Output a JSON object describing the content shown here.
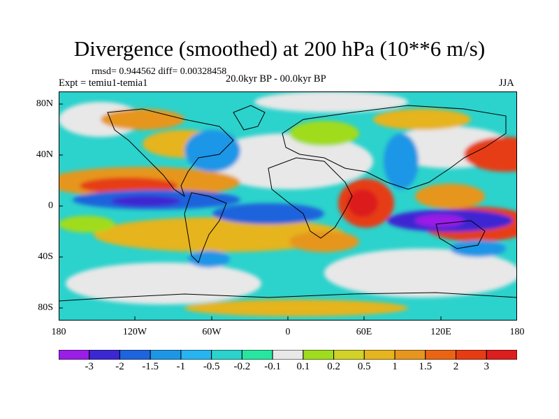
{
  "title": "Divergence (smoothed) at 200 hPa (10**6 m/s)",
  "stats": "rmsd= 0.944562 diff= 0.00328458",
  "experiment": "Expt = temiu1-temia1",
  "period": "20.0kyr BP - 00.0kyr BP",
  "season": "JJA",
  "lat_labels": [
    "80N",
    "40N",
    "0",
    "40S",
    "80S"
  ],
  "lon_labels": [
    "180",
    "120W",
    "60W",
    "0",
    "60E",
    "120E",
    "180"
  ],
  "colorbar": {
    "labels": [
      "-3",
      "-2",
      "-1.5",
      "-1",
      "-0.5",
      "-0.2",
      "-0.1",
      "0.1",
      "0.2",
      "0.5",
      "1",
      "1.5",
      "2",
      "3"
    ],
    "colors": [
      "#9a1ee6",
      "#3c28d2",
      "#1e64dc",
      "#1e96e6",
      "#28b4f0",
      "#2cd2cc",
      "#28e6a0",
      "#e8e8e8",
      "#a0dc1e",
      "#d2d228",
      "#e6b41e",
      "#e6961e",
      "#eb6414",
      "#e63c14",
      "#dc1e1e"
    ]
  },
  "map_colors": {
    "ocean_bg": "#2cd2cc",
    "neutral": "#e8e8e8",
    "coast": "#000000"
  }
}
